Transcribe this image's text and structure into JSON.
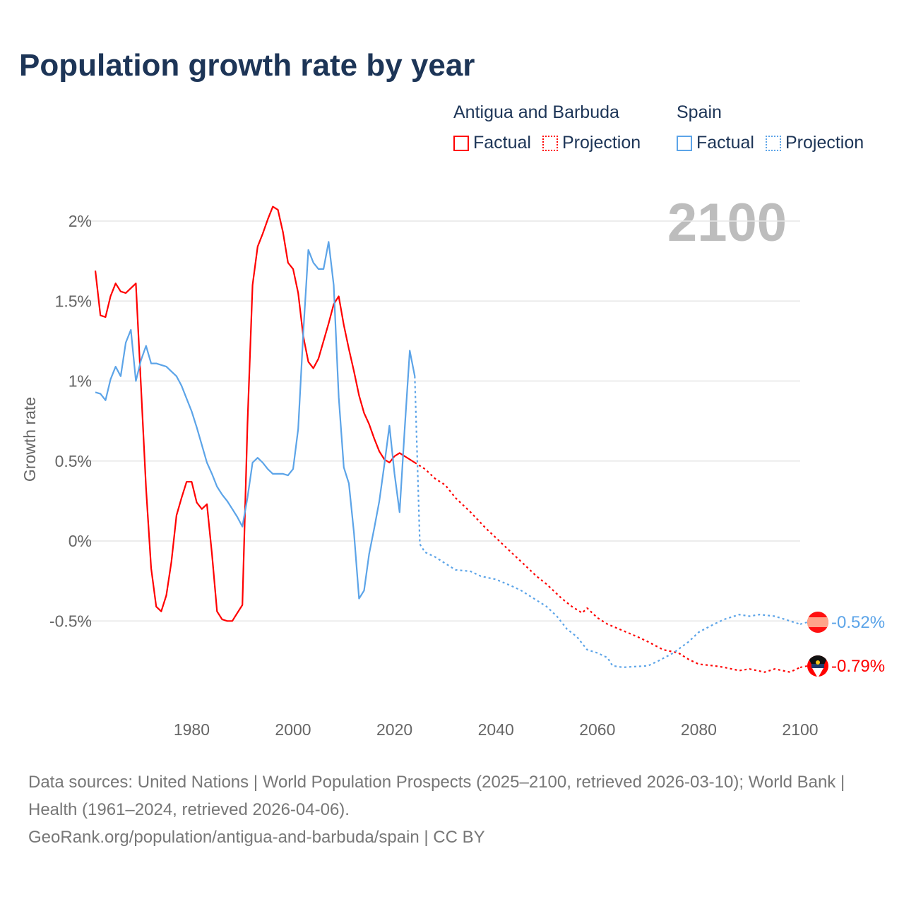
{
  "title": "Population growth rate by year",
  "legend": {
    "groups": [
      {
        "name": "Antigua and Barbuda",
        "factual": "Factual",
        "projection": "Projection",
        "color": "#ff0000"
      },
      {
        "name": "Spain",
        "factual": "Factual",
        "projection": "Projection",
        "color": "#5ca4e8"
      }
    ]
  },
  "current_year": "2100",
  "end_labels": {
    "spain": "-0.52%",
    "antigua": "-0.79%"
  },
  "footer": {
    "sources": "Data sources: United Nations | World Population Prospects (2025–2100, retrieved 2026-03-10); World Bank | Health (1961–2024, retrieved 2026-04-06).",
    "attribution": "GeoRank.org/population/antigua-and-barbuda/spain | CC BY"
  },
  "chart_data": {
    "type": "line",
    "title": "Population growth rate by year",
    "xlabel": "",
    "ylabel": "Growth rate",
    "xlim": [
      1961,
      2100
    ],
    "ylim": [
      -0.95,
      2.2
    ],
    "xticks": [
      1980,
      2000,
      2020,
      2040,
      2060,
      2080,
      2100
    ],
    "xtick_labels": [
      "1980",
      "2000",
      "2020",
      "2040",
      "2060",
      "2080",
      "2100"
    ],
    "yticks": [
      -0.5,
      0,
      0.5,
      1,
      1.5,
      2
    ],
    "ytick_labels": [
      "-0.5%",
      "0%",
      "0.5%",
      "1%",
      "1.5%",
      "2%"
    ],
    "grid": true,
    "legend_position": "top-right",
    "series": [
      {
        "name": "Antigua and Barbuda – Factual",
        "color": "#ff0000",
        "dashed": false,
        "x": [
          1961,
          1962,
          1963,
          1964,
          1965,
          1966,
          1967,
          1968,
          1969,
          1970,
          1971,
          1972,
          1973,
          1974,
          1975,
          1976,
          1977,
          1978,
          1979,
          1980,
          1981,
          1982,
          1983,
          1984,
          1985,
          1986,
          1987,
          1988,
          1989,
          1990,
          1991,
          1992,
          1993,
          1994,
          1995,
          1996,
          1997,
          1998,
          1999,
          2000,
          2001,
          2002,
          2003,
          2004,
          2005,
          2006,
          2007,
          2008,
          2009,
          2010,
          2011,
          2012,
          2013,
          2014,
          2015,
          2016,
          2017,
          2018,
          2019,
          2020,
          2021,
          2022,
          2023,
          2024
        ],
        "y": [
          1.69,
          1.41,
          1.4,
          1.53,
          1.61,
          1.56,
          1.55,
          1.58,
          1.61,
          0.97,
          0.33,
          -0.17,
          -0.41,
          -0.44,
          -0.34,
          -0.13,
          0.16,
          0.27,
          0.37,
          0.37,
          0.24,
          0.2,
          0.23,
          -0.08,
          -0.44,
          -0.49,
          -0.5,
          -0.5,
          -0.45,
          -0.4,
          0.73,
          1.6,
          1.84,
          1.92,
          2.01,
          2.09,
          2.07,
          1.93,
          1.74,
          1.7,
          1.55,
          1.28,
          1.12,
          1.08,
          1.14,
          1.25,
          1.36,
          1.48,
          1.53,
          1.35,
          1.2,
          1.06,
          0.91,
          0.8,
          0.73,
          0.64,
          0.56,
          0.51,
          0.49,
          0.53,
          0.55,
          0.53,
          0.51,
          0.49
        ]
      },
      {
        "name": "Antigua and Barbuda – Projection",
        "color": "#ff0000",
        "dashed": true,
        "x": [
          2024,
          2026,
          2028,
          2030,
          2032,
          2035,
          2038,
          2040,
          2043,
          2045,
          2048,
          2050,
          2053,
          2055,
          2057,
          2058,
          2060,
          2062,
          2065,
          2068,
          2070,
          2073,
          2076,
          2078,
          2080,
          2083,
          2085,
          2088,
          2090,
          2093,
          2095,
          2098,
          2100
        ],
        "y": [
          0.49,
          0.45,
          0.39,
          0.35,
          0.27,
          0.18,
          0.08,
          0.02,
          -0.07,
          -0.13,
          -0.22,
          -0.27,
          -0.36,
          -0.41,
          -0.45,
          -0.42,
          -0.48,
          -0.52,
          -0.56,
          -0.6,
          -0.63,
          -0.68,
          -0.7,
          -0.74,
          -0.77,
          -0.78,
          -0.79,
          -0.81,
          -0.8,
          -0.82,
          -0.8,
          -0.82,
          -0.79
        ]
      },
      {
        "name": "Spain – Factual",
        "color": "#5ca4e8",
        "dashed": false,
        "x": [
          1961,
          1962,
          1963,
          1964,
          1965,
          1966,
          1967,
          1968,
          1969,
          1970,
          1971,
          1972,
          1973,
          1974,
          1975,
          1976,
          1977,
          1978,
          1979,
          1980,
          1981,
          1982,
          1983,
          1984,
          1985,
          1986,
          1987,
          1988,
          1989,
          1990,
          1991,
          1992,
          1993,
          1994,
          1995,
          1996,
          1997,
          1998,
          1999,
          2000,
          2001,
          2002,
          2003,
          2004,
          2005,
          2006,
          2007,
          2008,
          2009,
          2010,
          2011,
          2012,
          2013,
          2014,
          2015,
          2016,
          2017,
          2018,
          2019,
          2020,
          2021,
          2022,
          2023,
          2024
        ],
        "y": [
          0.93,
          0.92,
          0.88,
          1.01,
          1.09,
          1.03,
          1.24,
          1.32,
          1.0,
          1.13,
          1.22,
          1.11,
          1.11,
          1.1,
          1.09,
          1.06,
          1.03,
          0.97,
          0.89,
          0.81,
          0.71,
          0.6,
          0.49,
          0.42,
          0.34,
          0.29,
          0.25,
          0.2,
          0.15,
          0.09,
          0.27,
          0.49,
          0.52,
          0.49,
          0.45,
          0.42,
          0.42,
          0.42,
          0.41,
          0.45,
          0.7,
          1.3,
          1.82,
          1.74,
          1.7,
          1.7,
          1.87,
          1.6,
          0.9,
          0.46,
          0.36,
          0.05,
          -0.36,
          -0.31,
          -0.08,
          0.08,
          0.25,
          0.48,
          0.72,
          0.42,
          0.18,
          0.7,
          1.19,
          1.03
        ]
      },
      {
        "name": "Spain – Projection",
        "color": "#5ca4e8",
        "dashed": true,
        "x": [
          2024,
          2025,
          2026,
          2028,
          2030,
          2032,
          2035,
          2037,
          2040,
          2043,
          2045,
          2048,
          2050,
          2052,
          2054,
          2056,
          2058,
          2060,
          2062,
          2063,
          2065,
          2070,
          2072,
          2075,
          2078,
          2080,
          2083,
          2085,
          2088,
          2090,
          2092,
          2095,
          2098,
          2100
        ],
        "y": [
          1.03,
          -0.02,
          -0.07,
          -0.1,
          -0.14,
          -0.18,
          -0.19,
          -0.22,
          -0.24,
          -0.28,
          -0.31,
          -0.37,
          -0.41,
          -0.47,
          -0.55,
          -0.6,
          -0.68,
          -0.7,
          -0.73,
          -0.78,
          -0.79,
          -0.78,
          -0.75,
          -0.7,
          -0.63,
          -0.57,
          -0.52,
          -0.49,
          -0.46,
          -0.47,
          -0.46,
          -0.47,
          -0.5,
          -0.52
        ]
      }
    ]
  }
}
